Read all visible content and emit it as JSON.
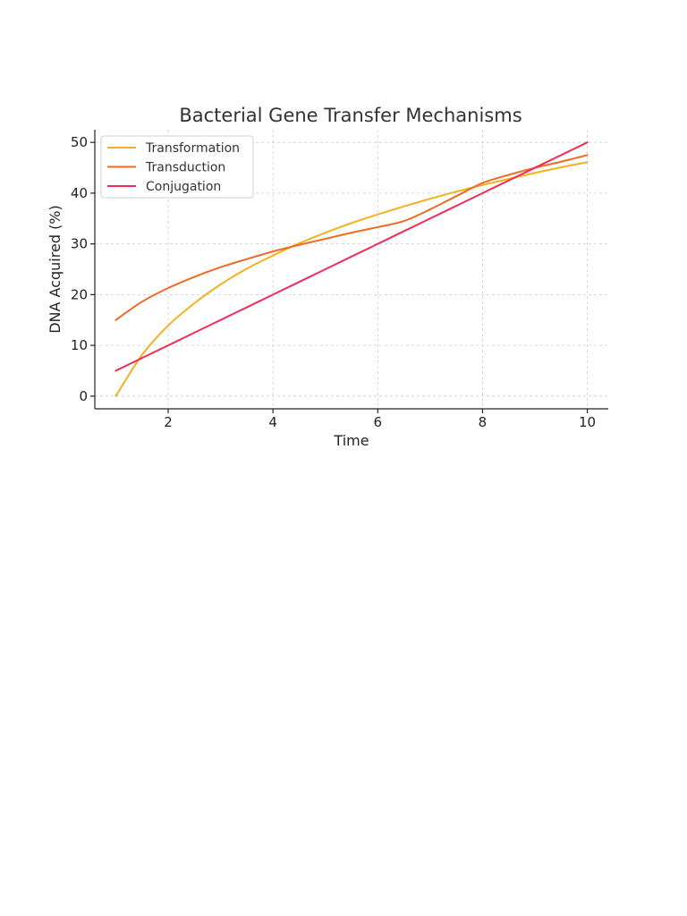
{
  "chart_data": {
    "type": "line",
    "title": "Bacterial Gene Transfer Mechanisms",
    "xlabel": "Time",
    "ylabel": "DNA Acquired (%)",
    "xlim": [
      0.6,
      10.4
    ],
    "ylim": [
      -2.5,
      52.5
    ],
    "xticks": [
      2,
      4,
      6,
      8,
      10
    ],
    "yticks": [
      0,
      10,
      20,
      30,
      40,
      50
    ],
    "grid": true,
    "legend_position": "top-left",
    "x": [
      1,
      1.5,
      2,
      2.5,
      3,
      3.5,
      4,
      4.5,
      5,
      5.5,
      6,
      6.5,
      7,
      7.5,
      8,
      8.5,
      9,
      9.5,
      10
    ],
    "series": [
      {
        "name": "Transformation",
        "color": "#f5b01e",
        "values": [
          0,
          8.1,
          13.9,
          18.3,
          22.0,
          25.1,
          27.7,
          30.1,
          32.2,
          34.1,
          35.8,
          37.4,
          38.9,
          40.3,
          41.6,
          42.8,
          44.0,
          45.1,
          46.1
        ]
      },
      {
        "name": "Transduction",
        "color": "#ee6b26",
        "values": [
          15,
          18.6,
          21.3,
          23.5,
          25.4,
          27.0,
          28.5,
          29.8,
          31.0,
          32.2,
          33.3,
          34.5,
          36.8,
          39.4,
          42.0,
          43.6,
          45.0,
          46.2,
          47.5
        ]
      },
      {
        "name": "Conjugation",
        "color": "#ef2d56",
        "values": [
          5,
          7.5,
          10,
          12.5,
          15,
          17.5,
          20,
          22.5,
          25,
          27.5,
          30,
          32.5,
          35,
          37.5,
          40,
          42.5,
          45,
          47.5,
          50
        ]
      }
    ]
  }
}
